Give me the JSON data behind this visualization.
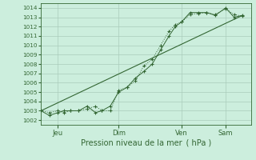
{
  "xlabel": "Pression niveau de la mer ( hPa )",
  "background_color": "#cceedd",
  "grid_color": "#aaccbb",
  "text_color": "#336633",
  "line_color": "#336633",
  "ylim": [
    1001.5,
    1014.5
  ],
  "yticks": [
    1002,
    1003,
    1004,
    1005,
    1006,
    1007,
    1008,
    1009,
    1010,
    1011,
    1012,
    1013,
    1014
  ],
  "xtick_labels": [
    "Jeu",
    "Dim",
    "Ven",
    "Sam"
  ],
  "xtick_positions": [
    0.08,
    0.37,
    0.67,
    0.88
  ],
  "xlim": [
    0.0,
    1.0
  ],
  "series1_x": [
    0.0,
    0.04,
    0.08,
    0.11,
    0.14,
    0.18,
    0.22,
    0.26,
    0.29,
    0.33,
    0.37,
    0.41,
    0.45,
    0.49,
    0.53,
    0.57,
    0.61,
    0.64,
    0.67,
    0.71,
    0.75,
    0.79,
    0.83,
    0.88,
    0.92,
    0.96
  ],
  "series1_y": [
    1003.0,
    1002.8,
    1003.0,
    1002.8,
    1003.0,
    1003.0,
    1003.2,
    1003.5,
    1003.0,
    1003.0,
    1005.2,
    1005.5,
    1006.2,
    1007.8,
    1008.5,
    1010.0,
    1011.5,
    1012.2,
    1012.5,
    1013.3,
    1013.4,
    1013.5,
    1013.3,
    1013.9,
    1013.3,
    1013.1
  ],
  "series2_x": [
    0.0,
    0.04,
    0.08,
    0.11,
    0.14,
    0.18,
    0.22,
    0.26,
    0.29,
    0.33,
    0.37,
    0.41,
    0.45,
    0.49,
    0.53,
    0.57,
    0.61,
    0.64,
    0.67,
    0.71,
    0.75,
    0.79,
    0.83,
    0.88,
    0.92,
    0.96
  ],
  "series2_y": [
    1003.0,
    1002.5,
    1002.8,
    1003.0,
    1003.0,
    1003.0,
    1003.5,
    1002.8,
    1003.0,
    1003.5,
    1005.0,
    1005.5,
    1006.5,
    1007.2,
    1008.0,
    1009.5,
    1011.0,
    1012.0,
    1012.5,
    1013.5,
    1013.5,
    1013.5,
    1013.2,
    1014.0,
    1013.0,
    1013.2
  ],
  "series3_x": [
    0.0,
    0.96
  ],
  "series3_y": [
    1003.0,
    1013.2
  ]
}
